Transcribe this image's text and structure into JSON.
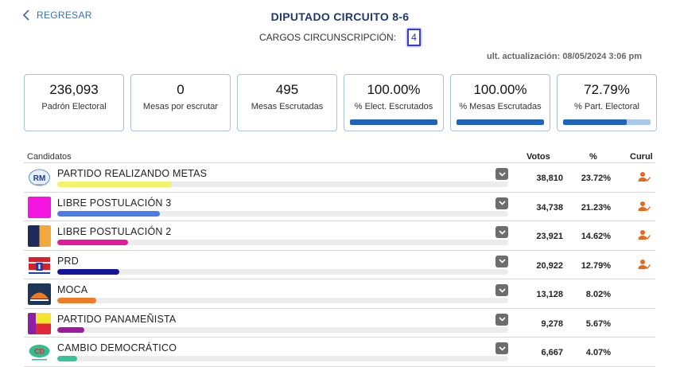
{
  "header": {
    "back_label": "REGRESAR",
    "title": "DIPUTADO CIRCUITO 8-6",
    "cargos_label": "CARGOS CIRCUNSCRIPCIÓN:",
    "cargos_value": "4",
    "updated": "ult. actualización: 08/05/2024 3:06 pm"
  },
  "cards": [
    {
      "value": "236,093",
      "label": "Padrón Electoral"
    },
    {
      "value": "0",
      "label": "Mesas por escrutar"
    },
    {
      "value": "495",
      "label": "Mesas Escrutadas"
    },
    {
      "value": "100.00%",
      "label": "% Elect. Escrutados",
      "progress": 1.0
    },
    {
      "value": "100.00%",
      "label": "% Mesas Escrutadas",
      "progress": 1.0
    },
    {
      "value": "72.79%",
      "label": "% Part. Electoral",
      "progress": 0.7279
    }
  ],
  "table": {
    "col_candidates": "Candidatos",
    "col_votes": "Votos",
    "col_pct": "%",
    "col_curul": "Curul",
    "rows": [
      {
        "name": "PARTIDO REALIZANDO METAS",
        "logo_text": "RM",
        "votes": "38,810",
        "pct": "23.72%",
        "share": 23.72,
        "bar_color": "#f3f36a",
        "curul": true
      },
      {
        "name": "LIBRE POSTULACIÓN 3",
        "votes": "34,738",
        "pct": "21.23%",
        "share": 21.23,
        "bar_color": "#4a7de6",
        "curul": true
      },
      {
        "name": "LIBRE POSTULACIÓN 2",
        "votes": "23,921",
        "pct": "14.62%",
        "share": 14.62,
        "bar_color": "#e01a9a",
        "curul": true
      },
      {
        "name": "PRD",
        "votes": "20,922",
        "pct": "12.79%",
        "share": 12.79,
        "bar_color": "#14149e",
        "curul": true
      },
      {
        "name": "MOCA",
        "votes": "13,128",
        "pct": "8.02%",
        "share": 8.02,
        "bar_color": "#ef7a2a",
        "curul": false
      },
      {
        "name": "PARTIDO PANAMEÑISTA",
        "votes": "9,278",
        "pct": "5.67%",
        "share": 5.67,
        "bar_color": "#a01aa0",
        "curul": false
      },
      {
        "name": "CAMBIO DEMOCRÁTICO",
        "logo_text": "CD",
        "votes": "6,667",
        "pct": "4.07%",
        "share": 4.07,
        "bar_color": "#3cc29a",
        "curul": false
      }
    ]
  }
}
